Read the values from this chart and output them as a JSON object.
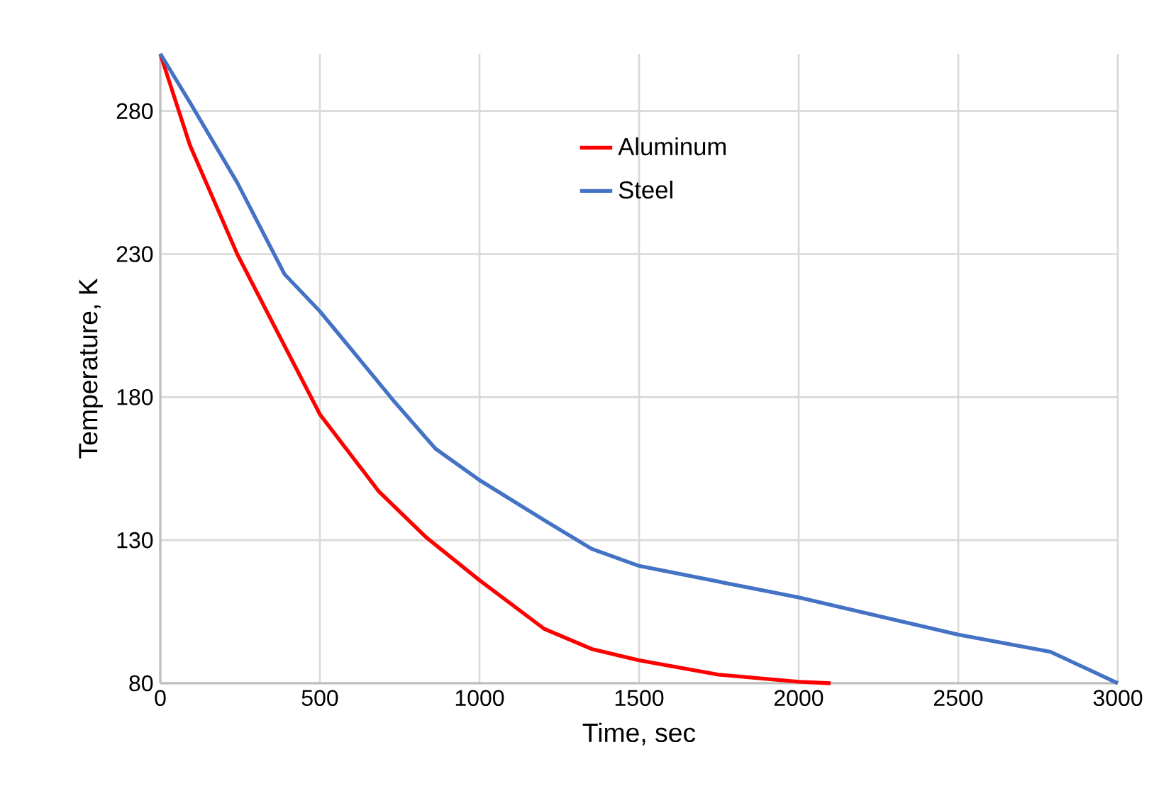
{
  "chart_data": {
    "type": "line",
    "xlabel": "Time, sec",
    "ylabel": "Temperature, K",
    "xlim": [
      0,
      3000
    ],
    "xticks": [
      0,
      500,
      1000,
      1500,
      2000,
      2500,
      3000
    ],
    "ylim": [
      80,
      300
    ],
    "yticks": [
      80,
      130,
      180,
      230,
      280
    ],
    "grid": true,
    "legend": "top",
    "marker": "none",
    "line_style": "solid",
    "series": [
      {
        "name": "Aluminum",
        "color": "#ff0000",
        "x": [
          0,
          93,
          241,
          389,
          500,
          685,
          833,
          1000,
          1203,
          1351,
          1500,
          1749,
          2000,
          2100
        ],
        "values": [
          300,
          268,
          230,
          198,
          174,
          147,
          131,
          116,
          99,
          92,
          88,
          83,
          80.5,
          80
        ]
      },
      {
        "name": "Steel",
        "color": "#4472c4",
        "x": [
          0,
          93,
          241,
          389,
          500,
          611,
          729,
          862,
          1000,
          1203,
          1351,
          1500,
          2000,
          2500,
          2789,
          3000
        ],
        "values": [
          300,
          283,
          255,
          223,
          210,
          195,
          179,
          162,
          151,
          137,
          127,
          121,
          110,
          97,
          91,
          80
        ]
      }
    ]
  }
}
